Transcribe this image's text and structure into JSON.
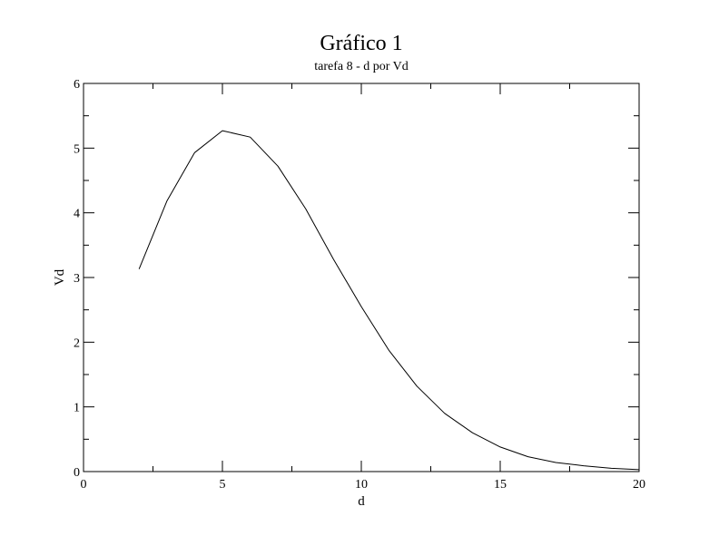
{
  "chart_data": {
    "type": "line",
    "title": "Gráfico 1",
    "subtitle": "tarefa 8 - d por Vd",
    "xlabel": "d",
    "ylabel": "Vd",
    "xlim": [
      0,
      20
    ],
    "ylim": [
      0,
      6
    ],
    "xticks": [
      0,
      5,
      10,
      15,
      20
    ],
    "yticks": [
      0,
      1,
      2,
      3,
      4,
      5,
      6
    ],
    "grid": false,
    "series": [
      {
        "x": [
          2,
          3,
          4,
          5,
          6,
          7,
          8,
          9,
          10,
          11,
          12,
          13,
          14,
          15,
          16,
          17,
          18,
          19,
          20
        ],
        "y": [
          3.13,
          4.18,
          4.93,
          5.27,
          5.17,
          4.72,
          4.06,
          3.28,
          2.55,
          1.87,
          1.32,
          0.9,
          0.6,
          0.38,
          0.23,
          0.14,
          0.09,
          0.05,
          0.03
        ],
        "color": "#000000"
      }
    ]
  }
}
